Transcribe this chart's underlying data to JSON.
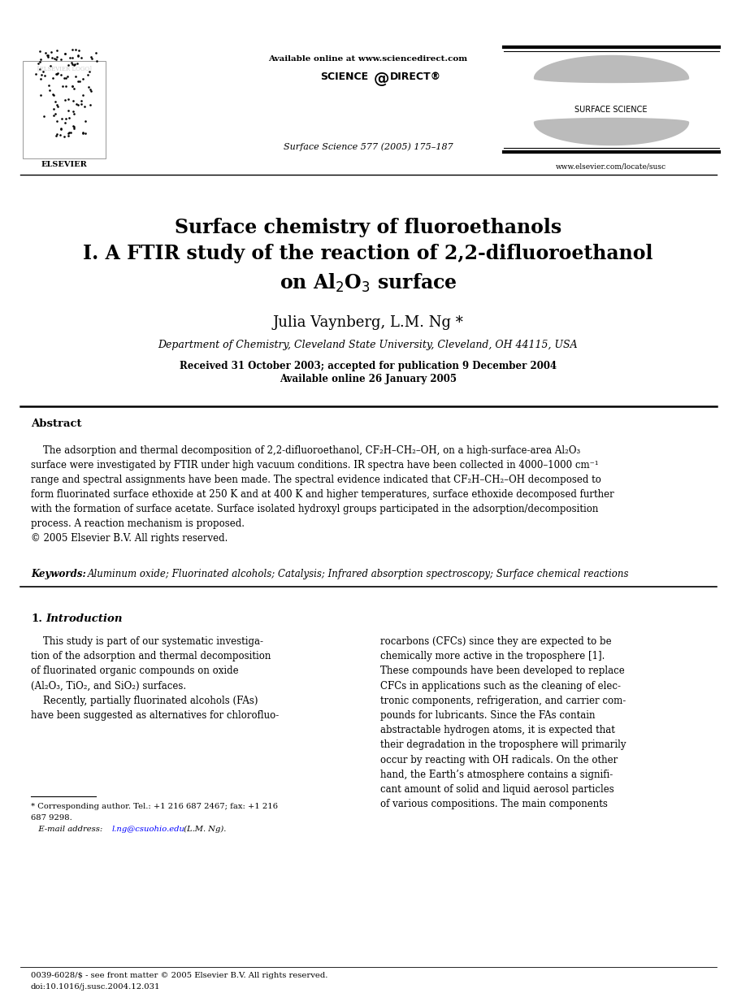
{
  "bg_color": "#ffffff",
  "page_width": 9.07,
  "page_height": 12.38,
  "dpi": 100,
  "header": {
    "available_online": "Available online at www.sciencedirect.com",
    "sciencedirect": "SCIENCE@DIRECT®",
    "journal_ref": "Surface Science 577 (2005) 175–187",
    "website": "www.elsevier.com/locate/susc",
    "journal_name": "SURFACE SCIENCE",
    "elsevier": "ELSEVIER"
  },
  "title_line1": "Surface chemistry of fluoroethanols",
  "title_line2": "I. A FTIR study of the reaction of 2,2-difluoroethanol",
  "title_line3": "on Al$_2$O$_3$ surface",
  "authors": "Julia Vaynberg, L.M. Ng *",
  "affiliation": "Department of Chemistry, Cleveland State University, Cleveland, OH 44115, USA",
  "dates_line1": "Received 31 October 2003; accepted for publication 9 December 2004",
  "dates_line2": "Available online 26 January 2005",
  "abstract_heading": "Abstract",
  "abstract_body": "    The adsorption and thermal decomposition of 2,2-difluoroethanol, CF₂H–CH₂–OH, on a high-surface-area Al₂O₃\nsurface were investigated by FTIR under high vacuum conditions. IR spectra have been collected in 4000–1000 cm⁻¹\nrange and spectral assignments have been made. The spectral evidence indicated that CF₂H–CH₂–OH decomposed to\nform fluorinated surface ethoxide at 250 K and at 400 K and higher temperatures, surface ethoxide decomposed further\nwith the formation of surface acetate. Surface isolated hydroxyl groups participated in the adsorption/decomposition\nprocess. A reaction mechanism is proposed.\n© 2005 Elsevier B.V. All rights reserved.",
  "keywords_label": "Keywords:",
  "keywords_text": "Aluminum oxide; Fluorinated alcohols; Catalysis; Infrared absorption spectroscopy; Surface chemical reactions",
  "sec1_num": "1.",
  "sec1_title": "Introduction",
  "col1_text": "    This study is part of our systematic investiga-\ntion of the adsorption and thermal decomposition\nof fluorinated organic compounds on oxide\n(Al₂O₃, TiO₂, and SiO₂) surfaces.\n    Recently, partially fluorinated alcohols (FAs)\nhave been suggested as alternatives for chlorofluo-",
  "col2_text": "rocarbons (CFCs) since they are expected to be\nchemically more active in the troposphere [1].\nThese compounds have been developed to replace\nCFCs in applications such as the cleaning of elec-\ntronic components, refrigeration, and carrier com-\npounds for lubricants. Since the FAs contain\nabstractable hydrogen atoms, it is expected that\ntheir degradation in the troposphere will primarily\noccur by reacting with OH radicals. On the other\nhand, the Earth’s atmosphere contains a signifi-\ncant amount of solid and liquid aerosol particles\nof various compositions. The main components",
  "fn_line1": "* Corresponding author. Tel.: +1 216 687 2467; fax: +1 216",
  "fn_line2": "687 9298.",
  "fn_email_pre": "   E-mail address: ",
  "fn_email": "l.ng@csuohio.edu",
  "fn_email_post": " (L.M. Ng).",
  "issn_line1": "0039-6028/$ - see front matter © 2005 Elsevier B.V. All rights reserved.",
  "issn_line2": "doi:10.1016/j.susc.2004.12.031"
}
